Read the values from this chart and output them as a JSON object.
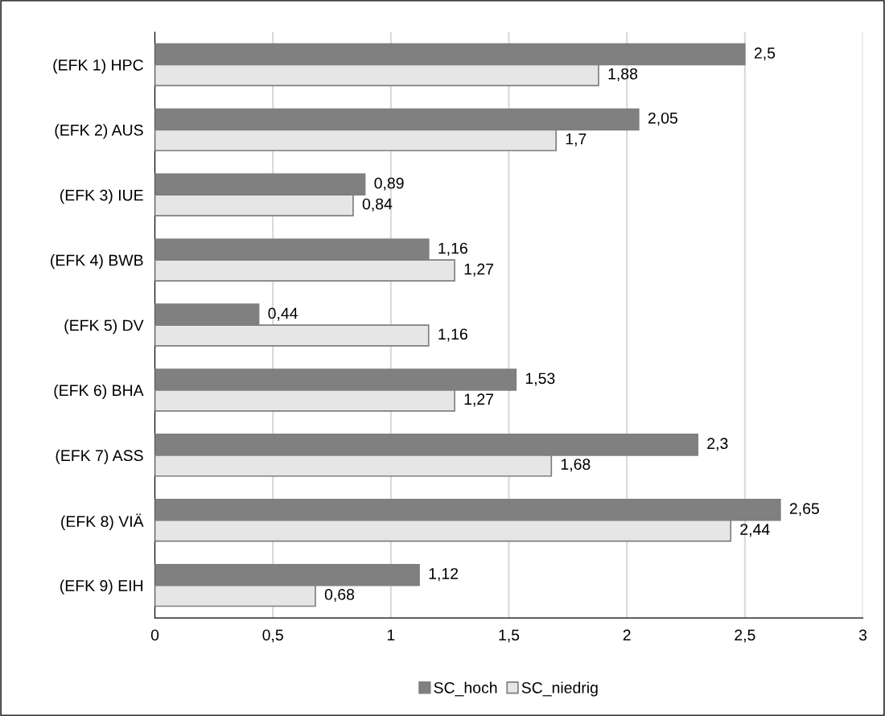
{
  "chart_data": {
    "type": "bar",
    "orientation": "horizontal",
    "categories": [
      "(EFK 1) HPC",
      "(EFK 2) AUS",
      "(EFK 3) IUE",
      "(EFK 4) BWB",
      "(EFK 5) DV",
      "(EFK 6) BHA",
      "(EFK 7) ASS",
      "(EFK 8) VIÄ",
      "(EFK 9) EIH"
    ],
    "series": [
      {
        "name": "SC_hoch",
        "color": "#808080",
        "values": [
          2.5,
          2.05,
          0.89,
          1.16,
          0.44,
          1.53,
          2.3,
          2.65,
          1.12
        ],
        "value_labels": [
          "2,5",
          "2,05",
          "0,89",
          "1,16",
          "0,44",
          "1,53",
          "2,3",
          "2,65",
          "1,12"
        ]
      },
      {
        "name": "SC_niedrig",
        "color": "#e6e6e6",
        "values": [
          1.88,
          1.7,
          0.84,
          1.27,
          1.16,
          1.27,
          1.68,
          2.44,
          0.68
        ],
        "value_labels": [
          "1,88",
          "1,7",
          "0,84",
          "1,27",
          "1,16",
          "1,27",
          "1,68",
          "2,44",
          "0,68"
        ]
      }
    ],
    "xlim": [
      0,
      3
    ],
    "xticks": [
      0,
      {
        "value": 0.5,
        "label": "0,5"
      },
      1,
      {
        "value": 1.5,
        "label": "1,5"
      },
      2,
      {
        "value": 2.5,
        "label": "2,5"
      },
      3
    ],
    "grid": "x",
    "legend": "bottom"
  }
}
